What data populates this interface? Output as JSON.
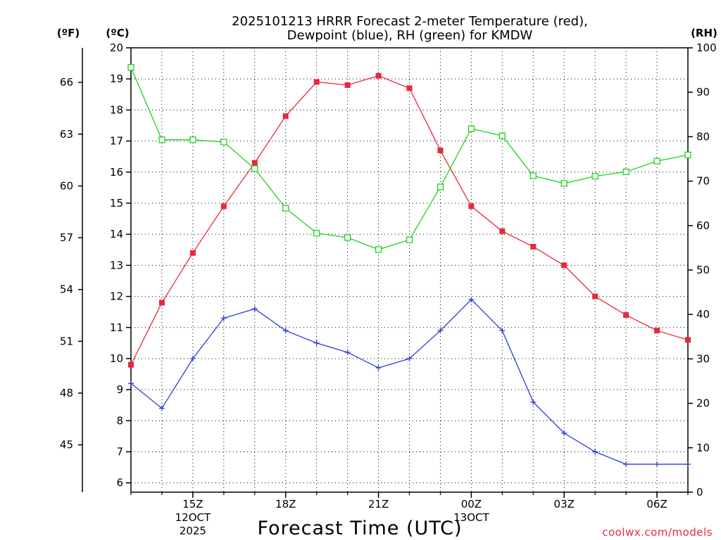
{
  "chart_data": {
    "type": "line",
    "title_line1": "2025101213 HRRR Forecast 2-meter Temperature (red),",
    "title_line2": "Dewpoint (blue), RH (green) for KMDW",
    "xlabel": "Forecast Time (UTC)",
    "credit": "coolwx.com/models",
    "units": {
      "fahrenheit": "(ºF)",
      "celsius": "(ºC)",
      "rh": "(RH)"
    },
    "x_hours": [
      13,
      14,
      15,
      16,
      17,
      18,
      19,
      20,
      21,
      22,
      23,
      24,
      25,
      26,
      27,
      28,
      29,
      30,
      31
    ],
    "x_ticks": [
      {
        "hour": 15,
        "label": "15Z",
        "date1": "12OCT",
        "date2": "2025"
      },
      {
        "hour": 18,
        "label": "18Z",
        "date1": "",
        "date2": ""
      },
      {
        "hour": 21,
        "label": "21Z",
        "date1": "",
        "date2": ""
      },
      {
        "hour": 24,
        "label": "00Z",
        "date1": "13OCT",
        "date2": ""
      },
      {
        "hour": 27,
        "label": "03Z",
        "date1": "",
        "date2": ""
      },
      {
        "hour": 30,
        "label": "06Z",
        "date1": "",
        "date2": ""
      }
    ],
    "xlim": [
      13,
      31
    ],
    "ylim_celsius": [
      5.7,
      20
    ],
    "ylim_rh": [
      0,
      100
    ],
    "celsius_ticks": [
      6,
      7,
      8,
      9,
      10,
      11,
      12,
      13,
      14,
      15,
      16,
      17,
      18,
      19,
      20
    ],
    "fahrenheit_ticks": [
      45,
      48,
      51,
      54,
      57,
      60,
      63,
      66
    ],
    "rh_ticks": [
      0,
      10,
      20,
      30,
      40,
      50,
      60,
      70,
      80,
      90,
      100
    ],
    "series": [
      {
        "name": "Temperature",
        "color": "#e8283c",
        "marker": "filled-square",
        "axis": "celsius",
        "values": [
          9.8,
          11.8,
          13.4,
          14.9,
          16.3,
          17.8,
          18.9,
          18.8,
          19.1,
          18.7,
          16.7,
          14.9,
          14.1,
          13.6,
          13.0,
          12.0,
          11.4,
          10.9,
          10.6
        ]
      },
      {
        "name": "Dewpoint",
        "color": "#2a3cdc",
        "marker": "plus",
        "axis": "celsius",
        "values": [
          9.2,
          8.4,
          10.0,
          11.3,
          11.6,
          10.9,
          10.5,
          10.2,
          9.7,
          10.0,
          10.9,
          11.9,
          10.9,
          8.6,
          7.6,
          7.0,
          6.6,
          6.6,
          6.6
        ]
      },
      {
        "name": "RH",
        "color": "#1ed21e",
        "marker": "open-square",
        "axis": "rh",
        "values": [
          95.6,
          79.3,
          79.3,
          78.8,
          72.8,
          63.9,
          58.3,
          57.3,
          54.6,
          56.8,
          68.7,
          81.8,
          80.2,
          71.2,
          69.5,
          71.1,
          72.1,
          74.5,
          75.9
        ]
      }
    ]
  }
}
